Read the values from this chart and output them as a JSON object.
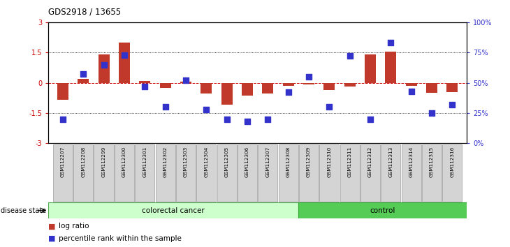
{
  "title": "GDS2918 / 13655",
  "samples": [
    "GSM112207",
    "GSM112208",
    "GSM112299",
    "GSM112300",
    "GSM112301",
    "GSM112302",
    "GSM112303",
    "GSM112304",
    "GSM112305",
    "GSM112306",
    "GSM112307",
    "GSM112308",
    "GSM112309",
    "GSM112310",
    "GSM112311",
    "GSM112312",
    "GSM112313",
    "GSM112314",
    "GSM112315",
    "GSM112316"
  ],
  "log_ratio": [
    -0.85,
    0.2,
    1.4,
    2.0,
    0.1,
    -0.25,
    0.07,
    -0.55,
    -1.1,
    -0.65,
    -0.55,
    -0.15,
    -0.1,
    -0.35,
    -0.2,
    1.4,
    1.55,
    -0.15,
    -0.5,
    -0.45
  ],
  "percentile_rank": [
    20,
    57,
    65,
    73,
    47,
    30,
    52,
    28,
    20,
    18,
    20,
    42,
    55,
    30,
    72,
    20,
    83,
    43,
    25,
    32
  ],
  "colorectal_count": 12,
  "control_count": 8,
  "ylim_left": [
    -3,
    3
  ],
  "yticks_left": [
    -3,
    -1.5,
    0,
    1.5,
    3
  ],
  "ytick_labels_right": [
    "0%",
    "25%",
    "50%",
    "75%",
    "100%"
  ],
  "yticks_right": [
    0,
    25,
    50,
    75,
    100
  ],
  "bar_color": "#c0392b",
  "dot_color": "#3333cc",
  "bg_color_cancer": "#ccffcc",
  "bg_color_control": "#55cc55",
  "label_bar": "log ratio",
  "label_dot": "percentile rank within the sample",
  "disease_label": "disease state"
}
